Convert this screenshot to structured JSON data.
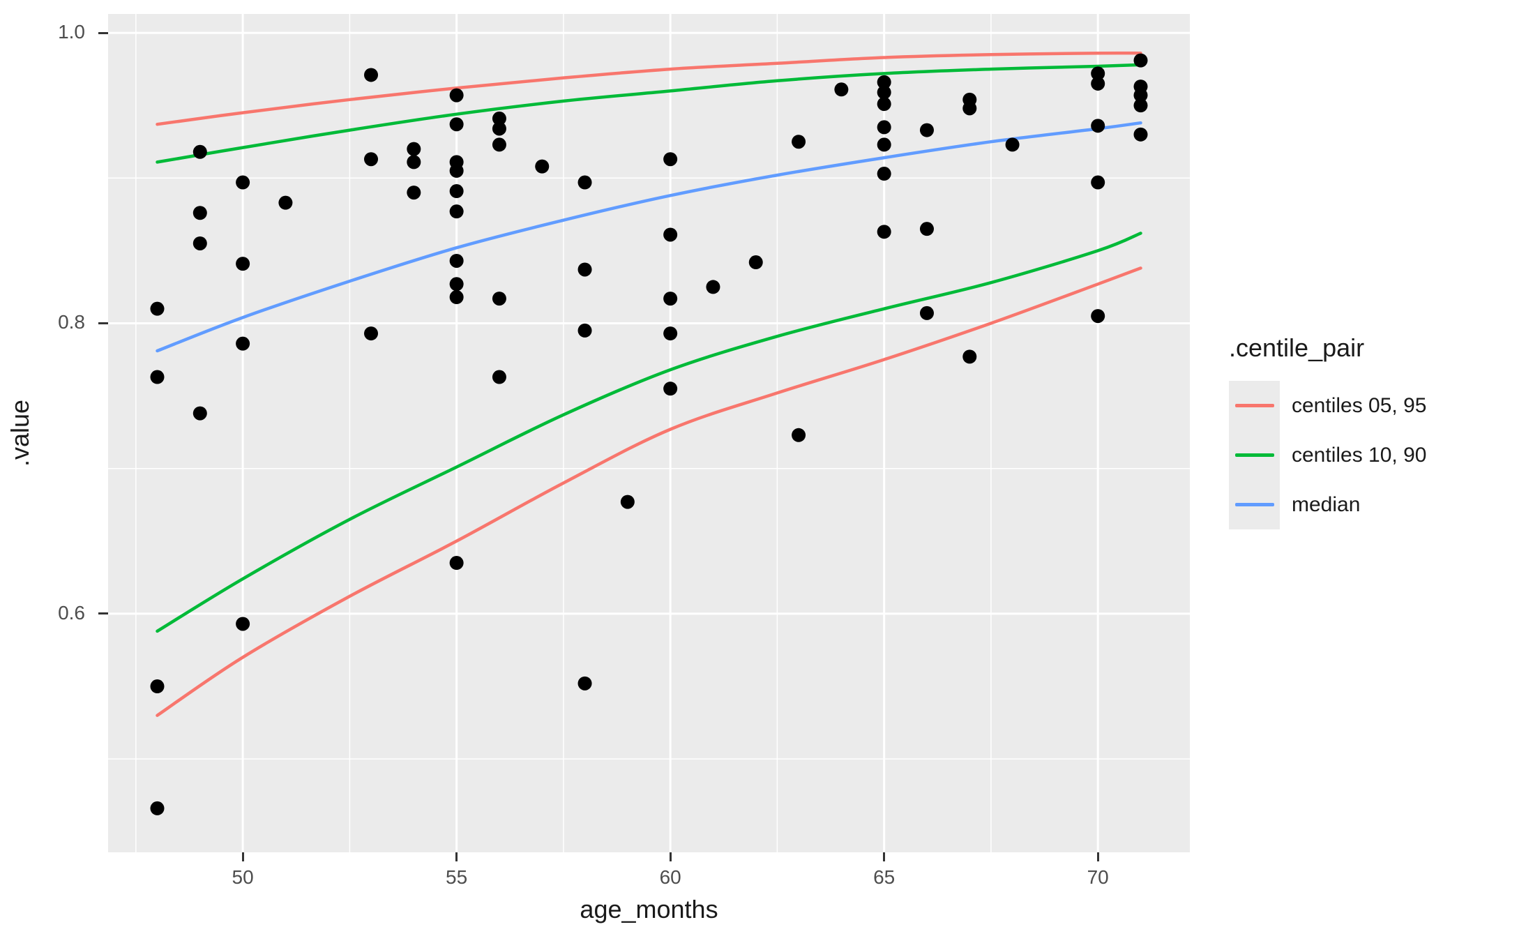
{
  "chart_data": {
    "type": "scatter",
    "xlabel": "age_months",
    "ylabel": ".value",
    "x_domain": [
      46.85,
      72.15
    ],
    "y_domain": [
      0.4357,
      1.013
    ],
    "x_ticks": [
      50,
      55,
      60,
      65,
      70
    ],
    "x_tick_labels": [
      "50",
      "55",
      "60",
      "65",
      "70"
    ],
    "y_ticks": [
      0.6,
      0.8,
      1.0
    ],
    "y_tick_labels": [
      "0.6",
      "0.8",
      "1.0"
    ],
    "x_minor": [
      47.5,
      52.5,
      57.5,
      62.5,
      67.5
    ],
    "y_minor": [
      0.5,
      0.7,
      0.9
    ],
    "grid": "on",
    "panel_color": "#EBEBEB",
    "gridline_color": "#FFFFFF",
    "point_color": "#000000",
    "points": [
      [
        48,
        0.81
      ],
      [
        48,
        0.763
      ],
      [
        48,
        0.55
      ],
      [
        48,
        0.466
      ],
      [
        49,
        0.918
      ],
      [
        49,
        0.876
      ],
      [
        49,
        0.855
      ],
      [
        49,
        0.738
      ],
      [
        50,
        0.897
      ],
      [
        50,
        0.841
      ],
      [
        50,
        0.786
      ],
      [
        50,
        0.593
      ],
      [
        51,
        0.883
      ],
      [
        53,
        0.971
      ],
      [
        53,
        0.913
      ],
      [
        53,
        0.793
      ],
      [
        54,
        0.92
      ],
      [
        54,
        0.911
      ],
      [
        54,
        0.89
      ],
      [
        55,
        0.957
      ],
      [
        55,
        0.937
      ],
      [
        55,
        0.911
      ],
      [
        55,
        0.905
      ],
      [
        55,
        0.891
      ],
      [
        55,
        0.877
      ],
      [
        55,
        0.843
      ],
      [
        55,
        0.827
      ],
      [
        55,
        0.818
      ],
      [
        55,
        0.635
      ],
      [
        56,
        0.941
      ],
      [
        56,
        0.934
      ],
      [
        56,
        0.923
      ],
      [
        56,
        0.817
      ],
      [
        56,
        0.763
      ],
      [
        57,
        0.908
      ],
      [
        58,
        0.897
      ],
      [
        58,
        0.837
      ],
      [
        58,
        0.795
      ],
      [
        58,
        0.552
      ],
      [
        59,
        0.677
      ],
      [
        60,
        0.913
      ],
      [
        60,
        0.861
      ],
      [
        60,
        0.817
      ],
      [
        60,
        0.793
      ],
      [
        60,
        0.755
      ],
      [
        61,
        0.825
      ],
      [
        62,
        0.842
      ],
      [
        63,
        0.925
      ],
      [
        63,
        0.723
      ],
      [
        64,
        0.961
      ],
      [
        65,
        0.966
      ],
      [
        65,
        0.959
      ],
      [
        65,
        0.951
      ],
      [
        65,
        0.935
      ],
      [
        65,
        0.923
      ],
      [
        65,
        0.903
      ],
      [
        65,
        0.863
      ],
      [
        66,
        0.933
      ],
      [
        66,
        0.865
      ],
      [
        66,
        0.807
      ],
      [
        67,
        0.954
      ],
      [
        67,
        0.948
      ],
      [
        67,
        0.777
      ],
      [
        68,
        0.923
      ],
      [
        70,
        0.972
      ],
      [
        70,
        0.965
      ],
      [
        70,
        0.936
      ],
      [
        70,
        0.897
      ],
      [
        70,
        0.805
      ],
      [
        71,
        0.981
      ],
      [
        71,
        0.963
      ],
      [
        71,
        0.957
      ],
      [
        71,
        0.95
      ],
      [
        71,
        0.93
      ]
    ],
    "curve_x": [
      48,
      50,
      52.5,
      55,
      57.5,
      60,
      62.5,
      65,
      67.5,
      70,
      71
    ],
    "curves": [
      {
        "name": "centile 05",
        "color": "#F8766D",
        "y": [
          0.53,
          0.57,
          0.612,
          0.65,
          0.69,
          0.727,
          0.752,
          0.775,
          0.8,
          0.827,
          0.838
        ]
      },
      {
        "name": "centile 10",
        "color": "#00BA38",
        "y": [
          0.588,
          0.624,
          0.665,
          0.701,
          0.737,
          0.768,
          0.791,
          0.81,
          0.828,
          0.85,
          0.862
        ]
      },
      {
        "name": "median",
        "color": "#619CFF",
        "y": [
          0.781,
          0.804,
          0.829,
          0.852,
          0.871,
          0.888,
          0.902,
          0.914,
          0.925,
          0.934,
          0.938
        ]
      },
      {
        "name": "centile 90",
        "color": "#00BA38",
        "y": [
          0.911,
          0.921,
          0.933,
          0.944,
          0.953,
          0.96,
          0.967,
          0.972,
          0.975,
          0.977,
          0.978
        ]
      },
      {
        "name": "centile 95",
        "color": "#F8766D",
        "y": [
          0.937,
          0.945,
          0.954,
          0.962,
          0.969,
          0.975,
          0.979,
          0.983,
          0.985,
          0.986,
          0.986
        ]
      }
    ],
    "legend": {
      "title": ".centile_pair",
      "position": "right",
      "entries": [
        {
          "label": "centiles 05, 95",
          "color": "#F8766D"
        },
        {
          "label": "centiles 10, 90",
          "color": "#00BA38"
        },
        {
          "label": "median",
          "color": "#619CFF"
        }
      ]
    }
  }
}
